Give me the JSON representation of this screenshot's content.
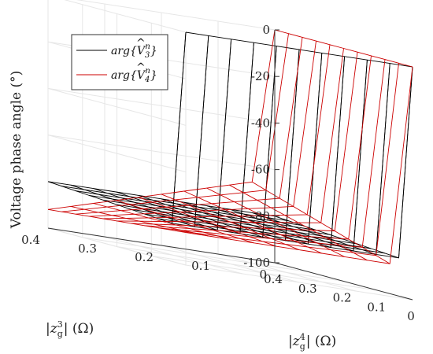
{
  "chart_data": {
    "type": "surface3d",
    "zlabel": "Voltage phase angle (°)",
    "xlabel": "|z_g^4| (Ω)",
    "ylabel": "|z_g^3| (Ω)",
    "x_ticks": [
      "0.4",
      "0.3",
      "0.2",
      "0.1",
      "0"
    ],
    "y_ticks": [
      "0",
      "0.1",
      "0.2",
      "0.3",
      "0.4"
    ],
    "z_ticks": [
      "0",
      "-20",
      "-40",
      "-60",
      "-80",
      "-100"
    ],
    "zlim": [
      -100,
      0
    ],
    "xlim": [
      0,
      0.4
    ],
    "ylim": [
      0,
      0.4
    ],
    "grid": true,
    "legend_position": "top-left",
    "series": [
      {
        "name": "arg{V̂_3^n}",
        "color": "#000000",
        "description": "drops from 0 at z4=0 to about -84, varying slowly with z4 and z3",
        "z_at_z4_zero": 0
      },
      {
        "name": "arg{V̂_4^n}",
        "color": "#cc0000",
        "description": "drops from 0 at z3=0 to about -60 to -92 depending on z3 and z4",
        "z_at_z3_zero": 0
      }
    ]
  },
  "legend": {
    "entries": [
      {
        "base": "arg{",
        "V": "V",
        "hat": "^",
        "sub": "3",
        "sup": "n",
        "end": "}"
      },
      {
        "base": "arg{",
        "V": "V",
        "hat": "^",
        "sub": "4",
        "sup": "n",
        "end": "}"
      }
    ]
  },
  "labels": {
    "zlabel": "Voltage phase angle (°)",
    "xlabel_pre": "|z",
    "xlabel_sub": "g",
    "xlabel_sup": "4",
    "xlabel_post": "| (Ω)",
    "ylabel_pre": "|z",
    "ylabel_sub": "g",
    "ylabel_sup": "3",
    "ylabel_post": "| (Ω)"
  }
}
